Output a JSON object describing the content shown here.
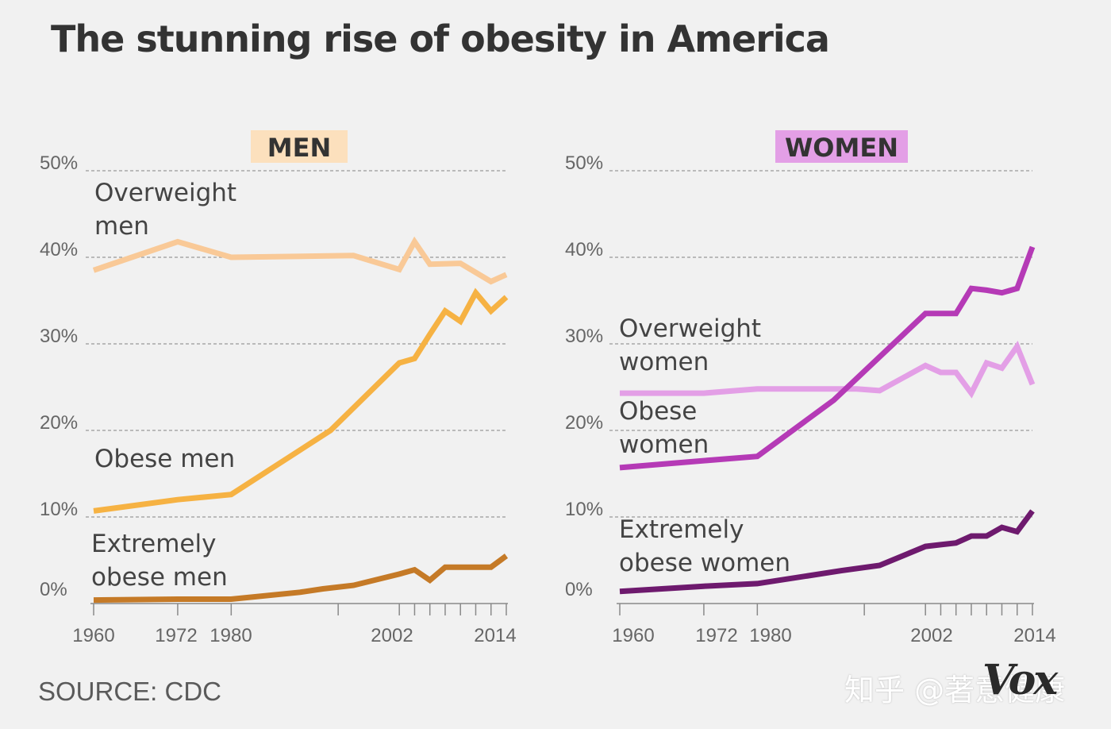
{
  "title": "The stunning rise of obesity in America",
  "source": "SOURCE: CDC",
  "watermark": "知乎 @著意健康",
  "logo": "Vox",
  "colors": {
    "background": "#f1f1f1",
    "men_panel": "#fce0bd",
    "women_panel": "#e39fe6",
    "overweight_men": "#f9c997",
    "obese_men": "#f6b243",
    "extremely_obese_men": "#c57a27",
    "overweight_women": "#e39fe6",
    "obese_women": "#b53ab6",
    "extremely_obese_women": "#6e1a6e"
  },
  "chart_data": [
    {
      "type": "line",
      "title": "MEN",
      "ylim": [
        0,
        50
      ],
      "yticks": [
        "0%",
        "10%",
        "20%",
        "30%",
        "40%",
        "50%"
      ],
      "xticks": [
        "1960",
        "1972",
        "1980",
        "2002",
        "2014"
      ],
      "xlim": [
        1960,
        2014
      ],
      "grid": true,
      "series": [
        {
          "name": "Overweight men",
          "label_lines": [
            "Overweight",
            "men"
          ],
          "x": [
            1960,
            1971,
            1978,
            1994,
            2000,
            2002,
            2004,
            2008,
            2012,
            2014
          ],
          "y": [
            38.5,
            41.8,
            40.0,
            40.2,
            38.6,
            41.8,
            39.2,
            39.3,
            37.2,
            38.0
          ]
        },
        {
          "name": "Obese men",
          "label_lines": [
            "Obese men"
          ],
          "x": [
            1960,
            1971,
            1978,
            1991,
            2000,
            2002,
            2004,
            2006,
            2008,
            2010,
            2012,
            2014
          ],
          "y": [
            10.7,
            12.0,
            12.6,
            20.0,
            27.8,
            28.3,
            31.1,
            33.8,
            32.6,
            35.9,
            33.8,
            35.4
          ]
        },
        {
          "name": "Extremely obese men",
          "label_lines": [
            "Extremely",
            "obese men"
          ],
          "x": [
            1960,
            1971,
            1978,
            1987,
            1990,
            1994,
            2000,
            2002,
            2004,
            2006,
            2008,
            2010,
            2012,
            2014
          ],
          "y": [
            0.4,
            0.5,
            0.5,
            1.3,
            1.7,
            2.1,
            3.4,
            3.9,
            2.7,
            4.2,
            4.2,
            4.2,
            4.2,
            5.5
          ]
        }
      ]
    },
    {
      "type": "line",
      "title": "WOMEN",
      "ylim": [
        0,
        50
      ],
      "yticks": [
        "0%",
        "10%",
        "20%",
        "30%",
        "40%",
        "50%"
      ],
      "xticks": [
        "1960",
        "1972",
        "1980",
        "2002",
        "2014"
      ],
      "xlim": [
        1960,
        2014
      ],
      "grid": true,
      "series": [
        {
          "name": "Overweight women",
          "label_lines": [
            "Overweight",
            "women"
          ],
          "x": [
            1960,
            1971,
            1978,
            1991,
            1994,
            2000,
            2002,
            2004,
            2006,
            2008,
            2010,
            2012,
            2014
          ],
          "y": [
            24.3,
            24.3,
            24.8,
            24.8,
            24.6,
            27.5,
            26.7,
            26.7,
            24.3,
            27.8,
            27.2,
            29.7,
            25.3
          ]
        },
        {
          "name": "Obese women",
          "label_lines": [
            "Obese",
            "women"
          ],
          "x": [
            1960,
            1971,
            1978,
            1988,
            2000,
            2002,
            2004,
            2006,
            2008,
            2010,
            2012,
            2014
          ],
          "y": [
            15.7,
            16.5,
            17.0,
            23.5,
            33.5,
            33.5,
            33.5,
            36.4,
            36.2,
            35.9,
            36.4,
            41.2
          ]
        },
        {
          "name": "Extremely obese women",
          "label_lines": [
            "Extremely",
            "obese women"
          ],
          "x": [
            1960,
            1971,
            1978,
            1989,
            1994,
            2000,
            2002,
            2004,
            2006,
            2008,
            2010,
            2012,
            2014
          ],
          "y": [
            1.4,
            2.0,
            2.3,
            3.8,
            4.4,
            6.6,
            6.8,
            7.0,
            7.8,
            7.8,
            8.8,
            8.3,
            10.7
          ]
        }
      ]
    }
  ]
}
